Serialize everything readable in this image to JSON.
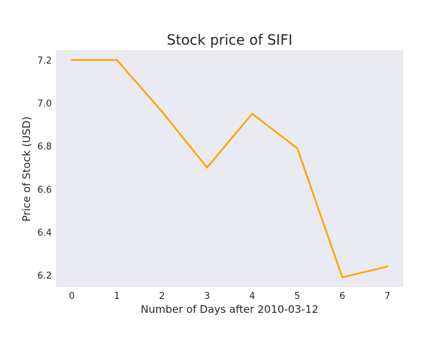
{
  "chart_data": {
    "type": "line",
    "title": "Stock price of SIFI",
    "xlabel": "Number of Days after 2010-03-12",
    "ylabel": "Price of Stock (USD)",
    "x": [
      0,
      1,
      2,
      3,
      4,
      5,
      6,
      7
    ],
    "series": [
      {
        "values": [
          7.2,
          7.2,
          6.96,
          6.7,
          6.95,
          6.79,
          6.19,
          6.24
        ],
        "color": "#ffa500"
      }
    ],
    "xlim": [
      -0.35,
      7.35
    ],
    "ylim": [
      6.145,
      7.245
    ],
    "x_ticks": [
      "0",
      "1",
      "2",
      "3",
      "4",
      "5",
      "6",
      "7"
    ],
    "y_ticks": [
      "6.2",
      "6.4",
      "6.6",
      "6.8",
      "7.0",
      "7.2"
    ],
    "y_tick_values": [
      6.2,
      6.4,
      6.6,
      6.8,
      7.0,
      7.2
    ],
    "grid": false,
    "background": "#eaeaf2"
  }
}
